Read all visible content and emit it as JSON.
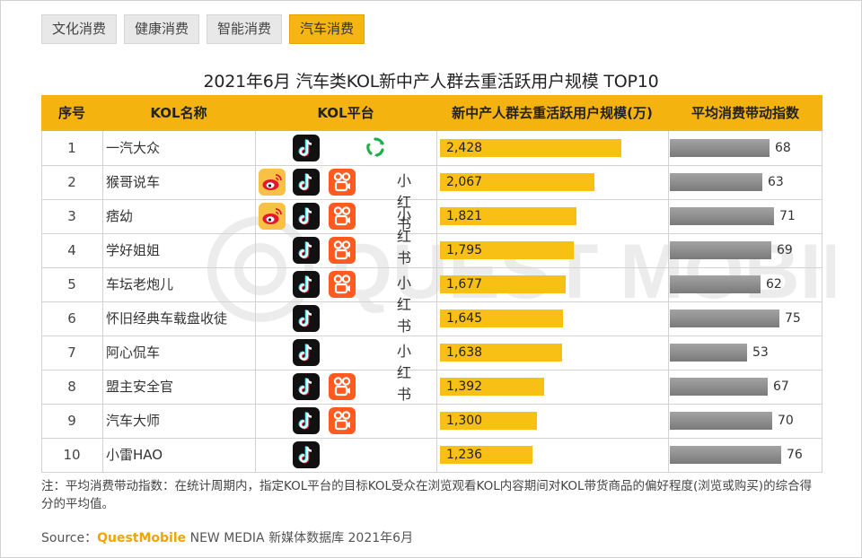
{
  "tabs": [
    "文化消费",
    "健康消费",
    "智能消费",
    "汽车消费"
  ],
  "active_tab": "汽车消费",
  "chart_data": {
    "type": "table",
    "title": "2021年6月 汽车类KOL新中产人群去重活跃用户规模 TOP10",
    "columns": [
      "序号",
      "KOL名称",
      "KOL平台",
      "新中产人群去重活跃用户规模(万)",
      "平均消费带动指数"
    ],
    "platform_legend": {
      "weibo": "微博",
      "douyin": "抖音",
      "kuaishou": "快手",
      "xiaohongshu": "小红书",
      "lushi": "绿色平台"
    },
    "rows": [
      {
        "rank": "1",
        "name": "一汽大众",
        "platforms": [
          "douyin",
          "lushi"
        ],
        "users_label": "2,428",
        "users": 2428,
        "index": 68
      },
      {
        "rank": "2",
        "name": "猴哥说车",
        "platforms": [
          "weibo",
          "douyin",
          "kuaishou",
          "xiaohongshu"
        ],
        "users_label": "2,067",
        "users": 2067,
        "index": 63
      },
      {
        "rank": "3",
        "name": "痞幼",
        "platforms": [
          "weibo",
          "douyin",
          "kuaishou",
          "xiaohongshu"
        ],
        "users_label": "1,821",
        "users": 1821,
        "index": 71
      },
      {
        "rank": "4",
        "name": "学好姐姐",
        "platforms": [
          "douyin",
          "kuaishou"
        ],
        "users_label": "1,795",
        "users": 1795,
        "index": 69
      },
      {
        "rank": "5",
        "name": "车坛老炮儿",
        "platforms": [
          "douyin",
          "kuaishou",
          "xiaohongshu"
        ],
        "users_label": "1,677",
        "users": 1677,
        "index": 62
      },
      {
        "rank": "6",
        "name": "怀旧经典车载盘收徒",
        "platforms": [
          "douyin"
        ],
        "users_label": "1,645",
        "users": 1645,
        "index": 75
      },
      {
        "rank": "7",
        "name": "阿心侃车",
        "platforms": [
          "douyin",
          "xiaohongshu"
        ],
        "users_label": "1,638",
        "users": 1638,
        "index": 53
      },
      {
        "rank": "8",
        "name": "盟主安全官",
        "platforms": [
          "douyin",
          "kuaishou"
        ],
        "users_label": "1,392",
        "users": 1392,
        "index": 67
      },
      {
        "rank": "9",
        "name": "汽车大师",
        "platforms": [
          "douyin",
          "kuaishou"
        ],
        "users_label": "1,300",
        "users": 1300,
        "index": 70
      },
      {
        "rank": "10",
        "name": "小雷HAO",
        "platforms": [
          "douyin"
        ],
        "users_label": "1,236",
        "users": 1236,
        "index": 76
      }
    ],
    "users_max": 2428,
    "index_max": 76
  },
  "xhs_text": "小红书",
  "note": "注：平均消费带动指数：在统计周期内，指定KOL平台的目标KOL受众在浏览观看KOL内容期间对KOL带货商品的偏好程度(浏览或购买)的综合得分的平均值。",
  "source_label": "Source：",
  "source_brand": "QuestMobile",
  "source_rest": " NEW MEDIA 新媒体数据库 2021年6月",
  "colors": {
    "accent": "#f4b30f",
    "bar_user": "#f8bf14",
    "bar_index": "#8c8c8c",
    "kuaishou": "#ff5a1f",
    "xiaohongshu": "#ff2442",
    "douyin": "#111111",
    "weibo": "#f6c144"
  }
}
